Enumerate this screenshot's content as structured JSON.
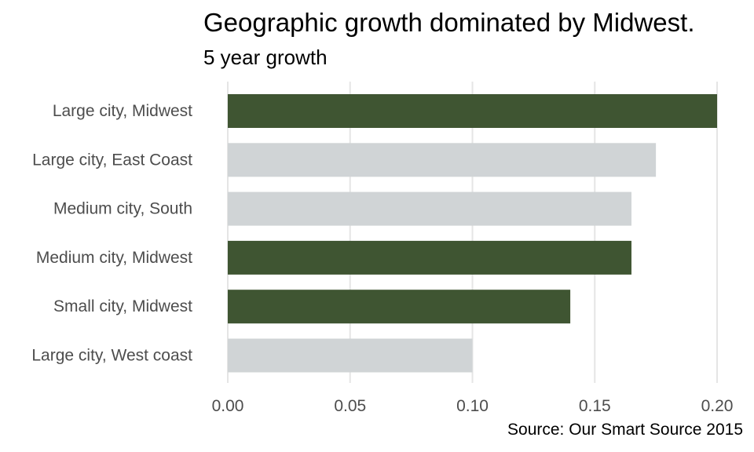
{
  "chart_data": {
    "type": "bar",
    "orientation": "horizontal",
    "title": "Geographic growth dominated by Midwest.",
    "subtitle": "5 year growth",
    "caption": "Source: Our Smart Source 2015",
    "xlabel": "",
    "ylabel": "",
    "categories": [
      "Large city, Midwest",
      "Large city, East Coast",
      "Medium city, South",
      "Medium city, Midwest",
      "Small city, Midwest",
      "Large city, West coast"
    ],
    "values": [
      0.2,
      0.175,
      0.165,
      0.165,
      0.14,
      0.1
    ],
    "highlighted": [
      true,
      false,
      false,
      true,
      true,
      false
    ],
    "xlim": [
      0,
      0.2
    ],
    "x_ticks": [
      "0.00",
      "0.05",
      "0.10",
      "0.15",
      "0.20"
    ],
    "x_tick_values": [
      0,
      0.05,
      0.1,
      0.15,
      0.2
    ],
    "grid": "vertical",
    "legend": "none",
    "colors": {
      "highlight": "#3f5532",
      "muted": "#d0d4d6",
      "grid": "#e5e5e5",
      "tick_text": "#4d4d4d"
    }
  }
}
